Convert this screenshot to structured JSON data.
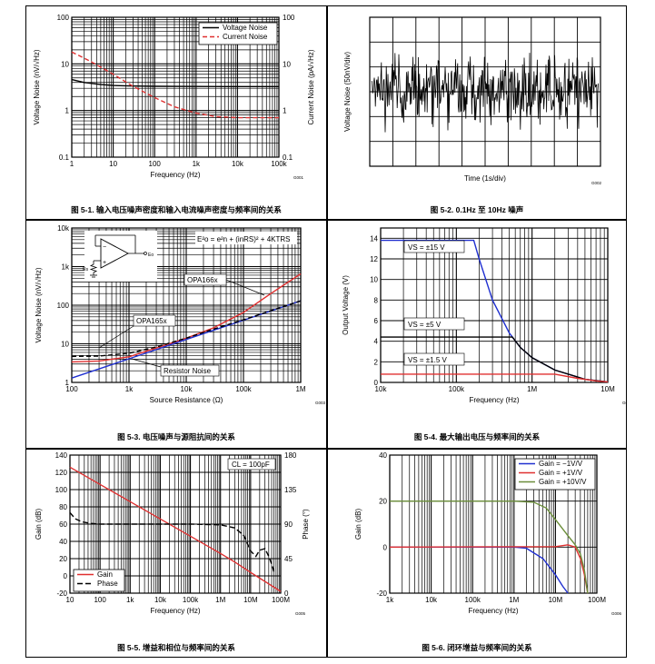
{
  "chart_data": [
    {
      "type": "line",
      "title": "",
      "caption": "图 5-1. 输入电压噪声密度和输入电流噪声密度与频率间的关系",
      "xlabel": "Frequency (Hz)",
      "ylabel": "Voltage Noise (nV/√Hz)",
      "y2label": "Current Noise (pA/√Hz)",
      "xscale": "log",
      "yscale": "log",
      "xlim": [
        1,
        100000
      ],
      "ylim": [
        0.1,
        100
      ],
      "y2lim": [
        0.1,
        100
      ],
      "xticks": [
        "1",
        "10",
        "100",
        "1k",
        "10k",
        "100k"
      ],
      "yticks": [
        "0.1",
        "1",
        "10",
        "100"
      ],
      "y2ticks": [
        "0.1",
        "1",
        "10",
        "100"
      ],
      "legend": "top-right",
      "code": "G001",
      "series": [
        {
          "name": "Voltage Noise",
          "color": "#000000",
          "dash": "",
          "axis": "y",
          "x": [
            1,
            2,
            5,
            10,
            30,
            100,
            1000,
            10000,
            100000
          ],
          "y": [
            4.6,
            4.0,
            3.6,
            3.45,
            3.35,
            3.3,
            3.28,
            3.27,
            3.27
          ]
        },
        {
          "name": "Current Noise",
          "color": "#e03030",
          "dash": "5,3",
          "axis": "y2",
          "x": [
            1,
            3,
            10,
            30,
            100,
            300,
            1000,
            3000,
            10000,
            100000
          ],
          "y": [
            18,
            11,
            6,
            3.3,
            1.9,
            1.2,
            0.88,
            0.74,
            0.7,
            0.7
          ]
        }
      ]
    },
    {
      "type": "line",
      "title": "",
      "caption": "图 5-2. 0.1Hz 至 10Hz 噪声",
      "xlabel": "Time (1s/div)",
      "ylabel": "Voltage Noise (50nV/div)",
      "xticks": [],
      "yticks": [],
      "code": "G002",
      "series": [
        {
          "name": "Noise",
          "color": "#000000",
          "noise_amplitude_div": 1.3
        }
      ]
    },
    {
      "type": "line",
      "title": "",
      "caption": "图 5-3. 电压噪声与源阻抗间的关系",
      "xlabel": "Source Resistance (Ω)",
      "ylabel": "Voltage Noise (nV/√Hz)",
      "xscale": "log",
      "yscale": "log",
      "xlim": [
        100,
        1000000
      ],
      "ylim": [
        1,
        10000
      ],
      "xticks": [
        "100",
        "1k",
        "10k",
        "100k",
        "1M"
      ],
      "yticks": [
        "1",
        "10",
        "100",
        "1k",
        "10k"
      ],
      "code": "G003",
      "equation": "E²o = e²n + (inRS)² + 4KTRS",
      "schematic_labels": [
        "Eo",
        "Rs"
      ],
      "annotations": [
        "OPA166x",
        "OPA165x",
        "Resistor Noise"
      ],
      "series": [
        {
          "name": "OPA166x",
          "color": "#e03030",
          "dash": "",
          "x": [
            100,
            300,
            1000,
            3000,
            10000,
            30000,
            100000,
            300000,
            1000000
          ],
          "y": [
            3.4,
            3.6,
            4.6,
            7.8,
            14,
            26,
            65,
            200,
            650
          ]
        },
        {
          "name": "Resistor Noise",
          "color": "#2030d0",
          "dash": "",
          "x": [
            100,
            1000,
            10000,
            100000,
            1000000
          ],
          "y": [
            1.3,
            4.1,
            13,
            41,
            130
          ]
        },
        {
          "name": "OPA165x",
          "color": "#000000",
          "dash": "5,3",
          "x": [
            100,
            300,
            1000,
            3000,
            10000,
            30000,
            100000,
            300000,
            1000000
          ],
          "y": [
            4.7,
            4.8,
            5.7,
            8.3,
            14,
            24,
            42,
            72,
            130
          ]
        }
      ]
    },
    {
      "type": "line",
      "title": "",
      "caption": "图 5-4. 最大输出电压与频率间的关系",
      "xlabel": "Frequency (Hz)",
      "ylabel": "Output Voltage (V)",
      "xscale": "log",
      "yscale": "linear",
      "xlim": [
        10000,
        10000000
      ],
      "ylim": [
        0,
        15
      ],
      "xticks": [
        "10k",
        "100k",
        "1M",
        "10M"
      ],
      "yticks": [
        "0",
        "2",
        "4",
        "6",
        "8",
        "10",
        "12",
        "14"
      ],
      "code": "G004",
      "annotations": [
        "VS = ±15 V",
        "VS = ±5 V",
        "VS = ±1.5 V"
      ],
      "series": [
        {
          "name": "VS = ±15 V",
          "color": "#2030d0",
          "x": [
            10000,
            170000,
            200000,
            300000,
            500000,
            700000,
            1000000,
            2000000,
            5000000,
            10000000
          ],
          "y": [
            13.8,
            13.8,
            12.0,
            8.0,
            4.8,
            3.4,
            2.4,
            1.2,
            0.3,
            0.05
          ]
        },
        {
          "name": "VS = ±5 V",
          "color": "#000000",
          "x": [
            10000,
            550000,
            700000,
            1000000,
            2000000,
            5000000,
            10000000
          ],
          "y": [
            4.4,
            4.4,
            3.4,
            2.4,
            1.2,
            0.3,
            0.05
          ]
        },
        {
          "name": "VS = ±1.5 V",
          "color": "#e03030",
          "x": [
            10000,
            2000000,
            4000000,
            7000000,
            10000000
          ],
          "y": [
            0.8,
            0.8,
            0.4,
            0.15,
            0.05
          ]
        }
      ]
    },
    {
      "type": "line",
      "title": "",
      "caption": "图 5-5. 增益和相位与频率间的关系",
      "xlabel": "Frequency (Hz)",
      "ylabel": "Gain (dB)",
      "y2label": "Phase (°)",
      "xscale": "log",
      "yscale": "linear",
      "xlim": [
        10,
        100000000
      ],
      "ylim": [
        -20,
        140
      ],
      "y2lim": [
        0,
        180
      ],
      "xticks": [
        "10",
        "100",
        "1k",
        "10k",
        "100k",
        "1M",
        "10M",
        "100M"
      ],
      "yticks": [
        "-20",
        "0",
        "20",
        "40",
        "60",
        "80",
        "100",
        "120",
        "140"
      ],
      "y2ticks": [
        "0",
        "45",
        "90",
        "135",
        "180"
      ],
      "legend": "bottom-left",
      "code": "G005",
      "annotations": [
        "CL = 100pF"
      ],
      "series": [
        {
          "name": "Gain",
          "color": "#e03030",
          "dash": "",
          "axis": "y",
          "x": [
            10,
            100,
            1000,
            10000,
            100000,
            1000000,
            3000000,
            10000000,
            100000000
          ],
          "y": [
            126,
            106,
            86,
            66,
            46,
            26,
            16,
            4,
            -18
          ]
        },
        {
          "name": "Phase",
          "color": "#000000",
          "dash": "6,3",
          "axis": "y2",
          "x": [
            10,
            15,
            25,
            50,
            100,
            1000,
            10000,
            100000,
            1000000,
            3000000,
            6000000,
            10000000,
            15000000,
            20000000,
            30000000,
            40000000,
            50000000,
            60000000
          ],
          "y": [
            105,
            97,
            93,
            91,
            90,
            90,
            90,
            90,
            89,
            85,
            75,
            55,
            48,
            56,
            58,
            48,
            38,
            28
          ]
        }
      ]
    },
    {
      "type": "line",
      "title": "",
      "caption": "图 5-6. 闭环增益与频率间的关系",
      "xlabel": "Frequency (Hz)",
      "ylabel": "Gain (dB)",
      "xscale": "log",
      "yscale": "linear",
      "xlim": [
        1000,
        100000000
      ],
      "ylim": [
        -20,
        40
      ],
      "xticks": [
        "1k",
        "10k",
        "100k",
        "1M",
        "10M",
        "100M"
      ],
      "yticks": [
        "-20",
        "0",
        "20",
        "40"
      ],
      "legend": "top-right",
      "code": "G006",
      "series": [
        {
          "name": "Gain = −1V/V",
          "color": "#2030d0",
          "x": [
            1000,
            1000000,
            2000000,
            5000000,
            10000000,
            15000000,
            20000000
          ],
          "y": [
            0,
            0,
            -0.5,
            -5,
            -12,
            -17,
            -20
          ]
        },
        {
          "name": "Gain = +1V/V",
          "color": "#e03030",
          "x": [
            1000,
            10000000,
            20000000,
            30000000,
            40000000,
            50000000,
            60000000
          ],
          "y": [
            0,
            0.2,
            1,
            0,
            -5,
            -12,
            -20
          ]
        },
        {
          "name": "Gain = +10V/V",
          "color": "#6b8e3a",
          "x": [
            1000,
            1000000,
            3000000,
            6000000,
            10000000,
            20000000,
            30000000,
            40000000,
            50000000,
            60000000
          ],
          "y": [
            20,
            20,
            19.5,
            17,
            12,
            5,
            1,
            -3,
            -10,
            -20
          ]
        }
      ]
    }
  ]
}
